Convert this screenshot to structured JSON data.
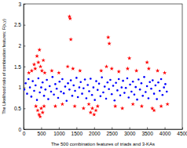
{
  "chart_data": {
    "type": "scatter",
    "x_label": "The 500 combination features of triads and 3-KAs",
    "y_label": "The Likelihood ratio of combination features: F(x,y)",
    "xlim": [
      0,
      4500
    ],
    "xticks": [
      0,
      500,
      1000,
      1500,
      2000,
      2500,
      3000,
      3500,
      4000,
      4500
    ],
    "ylim": [
      0,
      3
    ],
    "yticks": [
      0,
      0.5,
      1,
      1.5,
      2,
      2.5,
      3
    ],
    "series": [
      {
        "color": "#0000ff",
        "marker": "dot",
        "x": [
          20,
          60,
          100,
          140,
          180,
          220,
          260,
          300,
          340,
          380,
          420,
          460,
          500,
          540,
          580,
          620,
          660,
          700,
          740,
          780,
          820,
          860,
          900,
          940,
          980,
          1020,
          1060,
          1100,
          1140,
          1180,
          1220,
          1260,
          1300,
          1340,
          1380,
          1420,
          1460,
          1500,
          1540,
          1580,
          1620,
          1660,
          1700,
          1740,
          1780,
          1820,
          1860,
          1900,
          1940,
          1980,
          2020,
          2060,
          2100,
          2140,
          2180,
          2220,
          2260,
          2300,
          2340,
          2380,
          2420,
          2460,
          2500,
          2540,
          2580,
          2620,
          2660,
          2700,
          2740,
          2780,
          2820,
          2860,
          2900,
          2940,
          2980,
          3020,
          3060,
          3100,
          3140,
          3180,
          3220,
          3260,
          3300,
          3340,
          3380,
          3420,
          3460,
          3500,
          3540,
          3580,
          3620,
          3660,
          3700,
          3740,
          3780,
          3820,
          3860,
          3900,
          3940,
          3980,
          4020,
          4060
        ],
        "values": [
          0.95,
          1.1,
          0.85,
          1.2,
          1.0,
          0.78,
          1.15,
          0.92,
          1.05,
          0.7,
          1.22,
          0.88,
          1.0,
          1.12,
          0.8,
          0.95,
          1.18,
          0.72,
          1.03,
          0.9,
          1.25,
          0.83,
          1.08,
          0.97,
          0.75,
          1.14,
          0.9,
          1.2,
          0.86,
          1.02,
          0.68,
          1.1,
          0.95,
          1.17,
          0.8,
          1.05,
          0.92,
          1.23,
          0.77,
          1.0,
          1.13,
          0.85,
          0.98,
          1.19,
          0.74,
          1.06,
          0.91,
          1.21,
          0.82,
          1.0,
          0.7,
          1.15,
          0.94,
          1.09,
          0.79,
          1.24,
          0.88,
          1.02,
          0.73,
          1.12,
          0.96,
          1.18,
          0.84,
          1.04,
          0.69,
          1.11,
          0.93,
          1.2,
          0.81,
          1.0,
          1.16,
          0.87,
          0.99,
          1.22,
          0.76,
          1.07,
          0.9,
          1.14,
          0.83,
          1.01,
          0.71,
          1.19,
          0.95,
          1.1,
          0.8,
          1.25,
          0.89,
          1.03,
          0.74,
          1.13,
          0.97,
          1.17,
          0.85,
          1.05,
          0.72,
          1.12,
          0.92,
          1.2,
          0.82,
          1.0,
          1.08,
          0.9
        ]
      },
      {
        "color": "#ff0000",
        "marker": "star",
        "x": [
          150,
          230,
          300,
          330,
          380,
          420,
          450,
          480,
          520,
          560,
          600,
          350,
          400,
          440,
          470,
          500,
          540,
          580,
          800,
          900,
          1000,
          1100,
          1250,
          1300,
          1320,
          1340,
          1400,
          1450,
          1600,
          1700,
          1850,
          1900,
          1950,
          2000,
          2050,
          2100,
          2200,
          2350,
          2400,
          2430,
          2500,
          2600,
          2700,
          2800,
          2950,
          3000,
          3100,
          3200,
          3350,
          3500,
          3550,
          3650,
          3700,
          3800,
          3900,
          4000,
          4080
        ],
        "values": [
          1.35,
          1.4,
          1.55,
          1.45,
          1.75,
          1.6,
          1.9,
          1.5,
          1.4,
          1.65,
          1.35,
          0.55,
          0.45,
          0.35,
          0.3,
          0.5,
          0.4,
          0.55,
          1.4,
          0.55,
          1.35,
          0.6,
          1.5,
          2.7,
          2.65,
          2.15,
          1.45,
          0.55,
          1.4,
          0.5,
          0.6,
          0.4,
          0.5,
          0.35,
          0.45,
          0.55,
          1.4,
          1.5,
          2.2,
          2.05,
          1.45,
          0.55,
          1.38,
          0.5,
          1.45,
          1.7,
          0.6,
          1.4,
          0.55,
          1.6,
          1.45,
          0.5,
          0.45,
          1.4,
          0.55,
          1.35,
          0.6
        ]
      }
    ]
  }
}
